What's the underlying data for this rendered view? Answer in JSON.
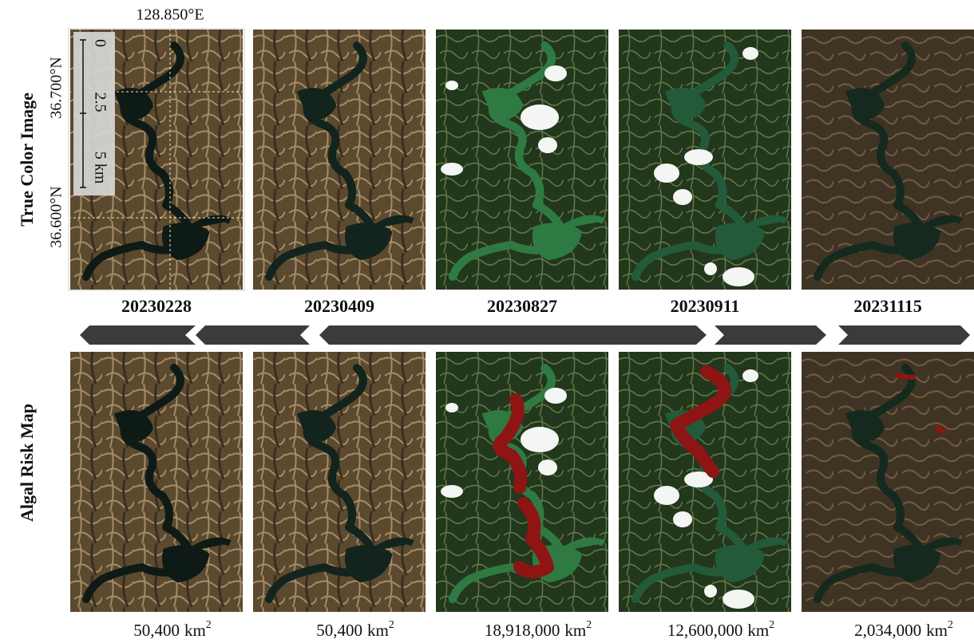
{
  "row_labels": [
    "True Color Image",
    "Algal Risk Map"
  ],
  "coordinates": {
    "longitude": "128.850°E",
    "latitudes": [
      "36.700°N",
      "36.600°N"
    ]
  },
  "scale_bar": [
    "0",
    "2.5",
    "5 km"
  ],
  "dates": [
    "20230228",
    "20230409",
    "20230827",
    "20230911",
    "20231115"
  ],
  "areas": [
    {
      "value": "50,400",
      "unit": "km",
      "exponent": "2"
    },
    {
      "value": "50,400",
      "unit": "km",
      "exponent": "2"
    },
    {
      "value": "18,918,000",
      "unit": "km",
      "exponent": "2"
    },
    {
      "value": "12,600,000",
      "unit": "km",
      "exponent": "2"
    },
    {
      "value": "2,034,000",
      "unit": "km",
      "exponent": "2"
    }
  ]
}
